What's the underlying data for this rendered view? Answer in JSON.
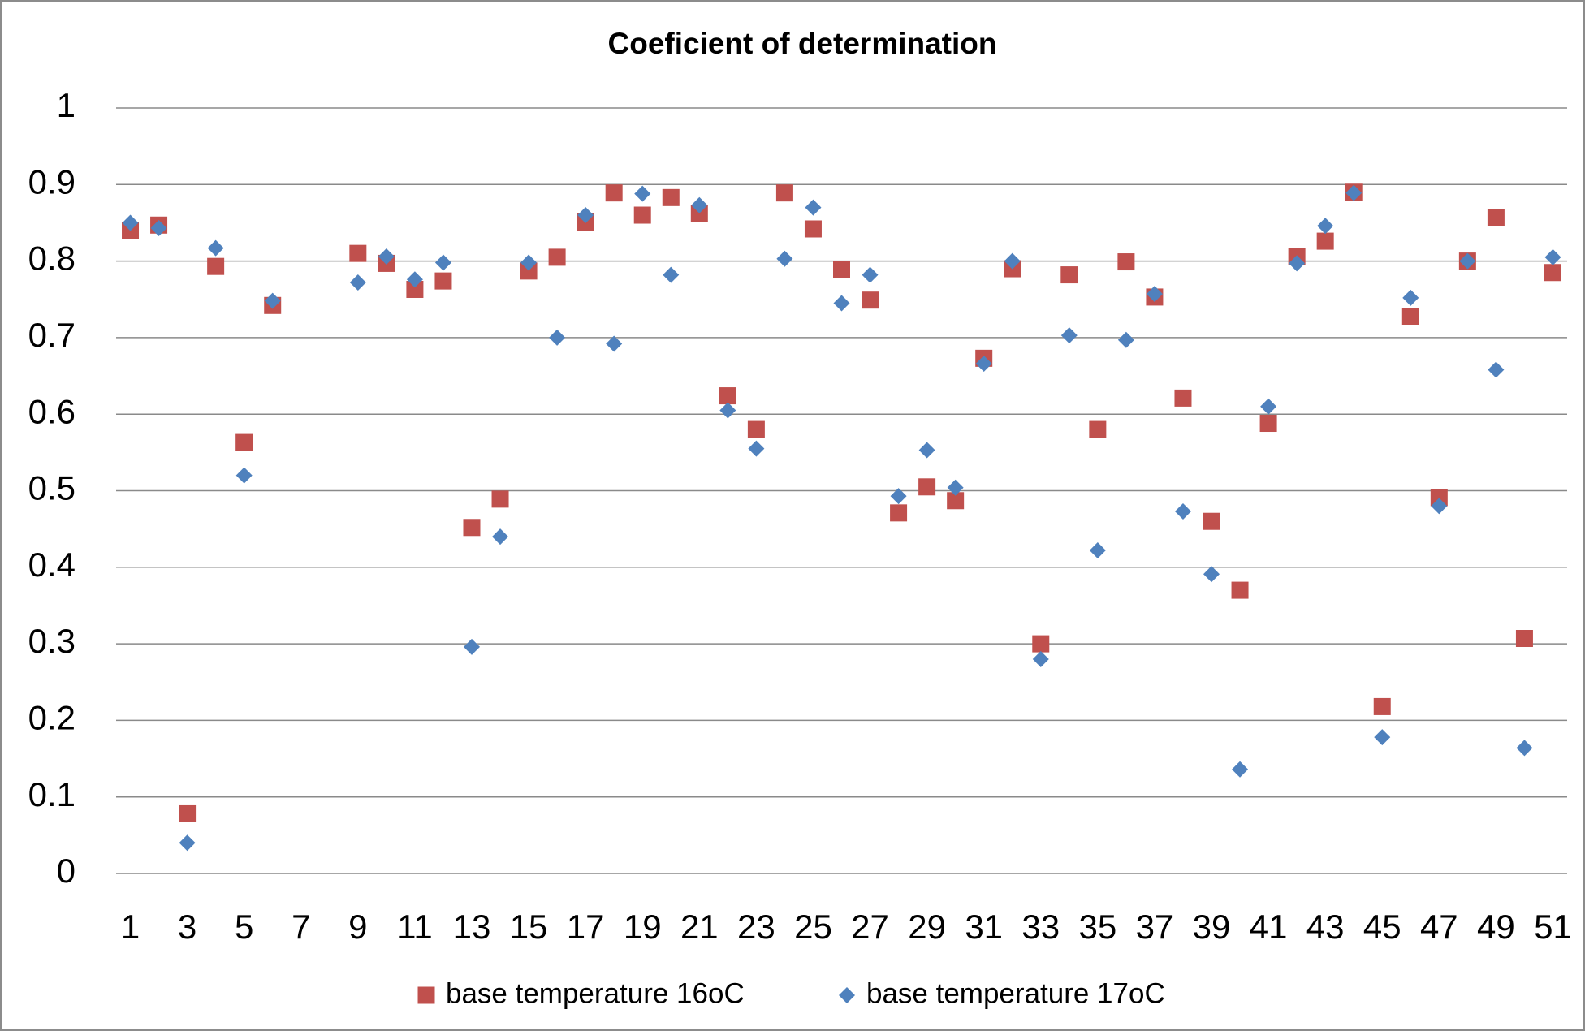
{
  "chart_data": {
    "type": "scatter",
    "title": "Coeficient of determination",
    "x": [
      1,
      2,
      3,
      4,
      5,
      6,
      7,
      8,
      9,
      10,
      11,
      12,
      13,
      14,
      15,
      16,
      17,
      18,
      19,
      20,
      21,
      22,
      23,
      24,
      25,
      26,
      27,
      28,
      29,
      30,
      31,
      32,
      33,
      34,
      35,
      36,
      37,
      38,
      39,
      40,
      41,
      42,
      43,
      44,
      45,
      46,
      47,
      48,
      49,
      50,
      51
    ],
    "series": [
      {
        "name": "base temperature 16oC",
        "color": "#c0504d",
        "marker": "square",
        "values": [
          0.84,
          0.847,
          0.078,
          0.793,
          0.563,
          0.742,
          null,
          null,
          0.81,
          0.797,
          0.763,
          0.774,
          0.452,
          0.489,
          0.787,
          0.805,
          0.851,
          0.889,
          0.86,
          0.883,
          0.862,
          0.624,
          0.58,
          0.889,
          0.842,
          0.789,
          0.749,
          0.471,
          0.505,
          0.487,
          0.673,
          0.79,
          0.3,
          0.782,
          0.58,
          0.799,
          0.753,
          0.621,
          0.46,
          0.37,
          0.588,
          0.806,
          0.826,
          0.89,
          0.218,
          0.728,
          0.491,
          0.8,
          0.857,
          0.307,
          0.785
        ]
      },
      {
        "name": "base temperature 17oC",
        "color": "#4f81bd",
        "marker": "diamond",
        "values": [
          0.85,
          0.843,
          0.04,
          0.817,
          0.52,
          0.748,
          null,
          null,
          0.772,
          0.806,
          0.776,
          0.798,
          0.296,
          0.44,
          0.798,
          0.7,
          0.86,
          0.692,
          0.888,
          0.782,
          0.873,
          0.605,
          0.555,
          0.803,
          0.87,
          0.745,
          0.782,
          0.493,
          0.553,
          0.504,
          0.666,
          0.8,
          0.28,
          0.703,
          0.422,
          0.697,
          0.757,
          0.473,
          0.391,
          0.136,
          0.61,
          0.797,
          0.846,
          0.889,
          0.178,
          0.752,
          0.48,
          0.8,
          0.658,
          0.164,
          0.805
        ]
      }
    ],
    "xlim": [
      0.5,
      51.5
    ],
    "xticks": [
      1,
      3,
      5,
      7,
      9,
      11,
      13,
      15,
      17,
      19,
      21,
      23,
      25,
      27,
      29,
      31,
      33,
      35,
      37,
      39,
      41,
      43,
      45,
      47,
      49,
      51
    ],
    "ylim": [
      0,
      1
    ],
    "yticks": [
      0,
      0.1,
      0.2,
      0.3,
      0.4,
      0.5,
      0.6,
      0.7,
      0.8,
      0.9,
      1
    ],
    "grid": true,
    "legend": "bottom"
  }
}
